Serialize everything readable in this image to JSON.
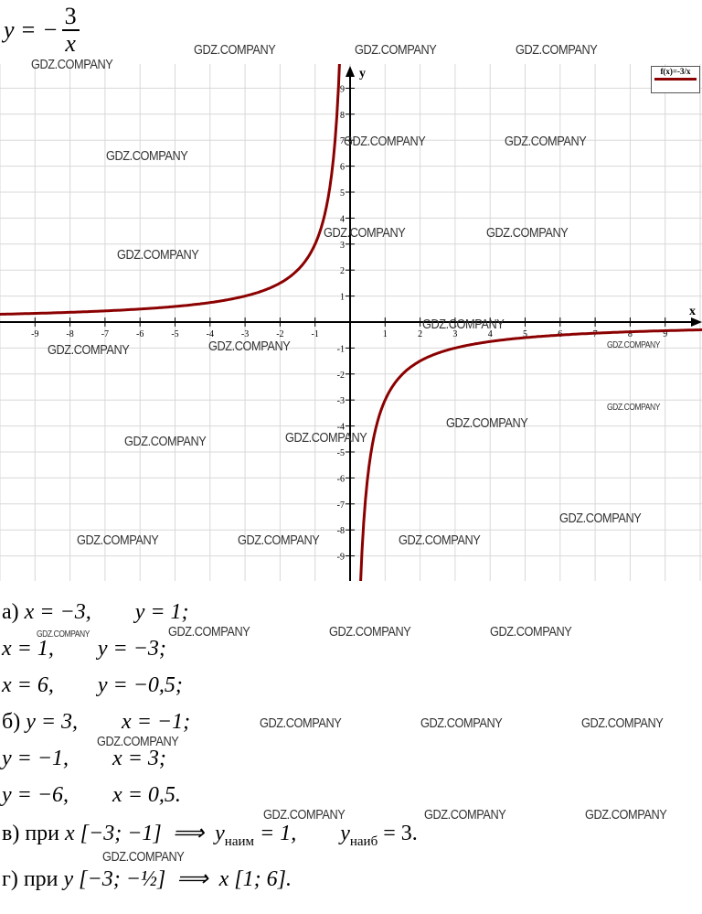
{
  "heading": {
    "lhs": "y = −",
    "numerator": "3",
    "denominator": "x"
  },
  "chart_data": {
    "type": "line",
    "function": "f(x)=-3/x",
    "legend": {
      "label": "f(x)=-3/x",
      "placement": "top-right"
    },
    "xlabel": "x",
    "ylabel": "y",
    "xlim": [
      -10,
      10
    ],
    "ylim": [
      -10,
      10
    ],
    "grid": true,
    "x_ticks": [
      -9,
      -8,
      -7,
      -6,
      -5,
      -4,
      -3,
      -2,
      -1,
      1,
      2,
      3,
      4,
      5,
      6,
      7,
      8,
      9
    ],
    "y_ticks": [
      -9,
      -8,
      -7,
      -6,
      -5,
      -4,
      -3,
      -2,
      -1,
      1,
      2,
      3,
      4,
      5,
      6,
      7,
      8,
      9
    ],
    "series": [
      {
        "color": "#8b0000",
        "points_x": [
          -10,
          -9,
          -8,
          -7,
          -6,
          -5,
          -4,
          -3,
          -2,
          -1,
          -0.5,
          -0.3,
          0.3,
          0.5,
          1,
          2,
          3,
          4,
          5,
          6,
          7,
          8,
          9,
          10
        ],
        "points_y": [
          0.3,
          0.333,
          0.375,
          0.429,
          0.5,
          0.6,
          0.75,
          1,
          1.5,
          3,
          6,
          10,
          -10,
          -6,
          -3,
          -1.5,
          -1,
          -0.75,
          -0.6,
          -0.5,
          -0.429,
          -0.375,
          -0.333,
          -0.3
        ]
      }
    ]
  },
  "answers": [
    {
      "label": "а) ",
      "text": "x = −3,        y = 1;"
    },
    {
      "label": "",
      "text": "x = 1,        y = −3;"
    },
    {
      "label": "",
      "text": "x = 6,        y = −0,5;"
    },
    {
      "label": "б) ",
      "text": "y = 3,        x = −1;"
    },
    {
      "label": "",
      "text": "y = −1,        x = 3;"
    },
    {
      "label": "",
      "text": "y = −6,        x = 0,5."
    },
    {
      "label": "в) при ",
      "text": "x [−3; −1]  ⟹  y",
      "sub1": "наим",
      "mid": " = 1,        y",
      "sub2": "наиб",
      "end": " = 3."
    },
    {
      "label": "г) при ",
      "text": "y [−3; −½]  ⟹  x [1; 6]."
    }
  ],
  "watermark": "GDZ.COMPANY"
}
